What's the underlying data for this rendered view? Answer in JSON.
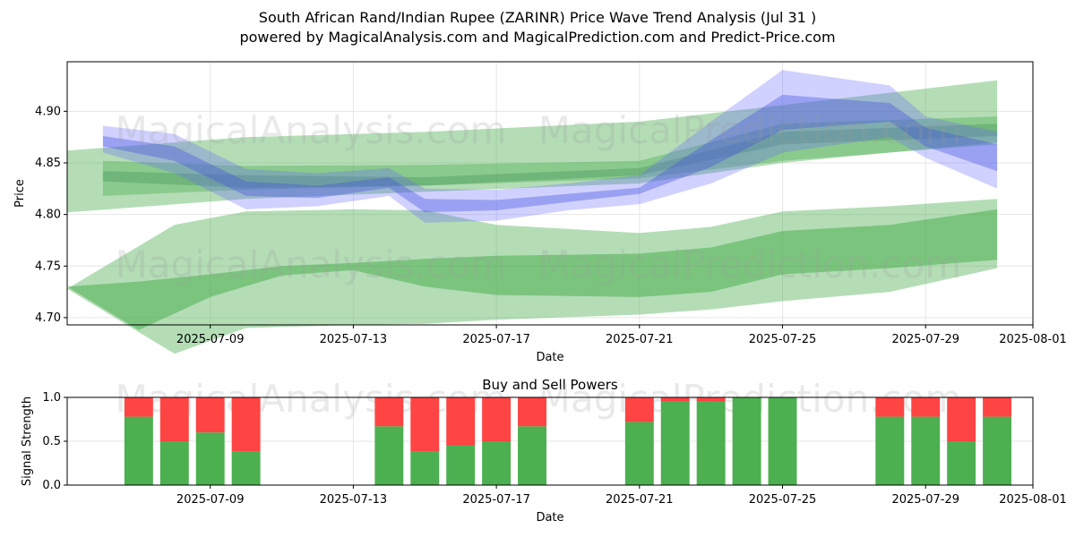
{
  "title_line1": "South African Rand/Indian Rupee (ZARINR) Price Wave Trend Analysis (Jul 31 )",
  "title_line2": "powered by MagicalAnalysis.com and MagicalPrediction.com and Predict-Price.com",
  "watermarks": [
    "MagicalAnalysis.com",
    "MagicalPrediction.com"
  ],
  "colors": {
    "green_band": "#4caf50",
    "blue_band": "#6666ff",
    "buy": "#4caf50",
    "sell": "#ff4444",
    "grid": "#e6e6e6"
  },
  "chart_data": [
    {
      "type": "area",
      "title": "",
      "xlabel": "Date",
      "ylabel": "Price",
      "x_range": [
        "2025-07-05",
        "2025-08-01"
      ],
      "ylim": [
        4.693,
        4.948
      ],
      "yticks": [
        4.7,
        4.75,
        4.8,
        4.85,
        4.9
      ],
      "ytick_labels": [
        "4.70",
        "4.75",
        "4.80",
        "4.85",
        "4.90"
      ],
      "xticks": [
        "2025-07-09",
        "2025-07-13",
        "2025-07-17",
        "2025-07-21",
        "2025-07-25",
        "2025-07-29",
        "2025-08-01"
      ],
      "grid": true,
      "series": [
        {
          "kind": "green-wide",
          "x": [
            "2025-07-05",
            "2025-07-08",
            "2025-07-10",
            "2025-07-13",
            "2025-07-15",
            "2025-07-17",
            "2025-07-21",
            "2025-07-23",
            "2025-07-25",
            "2025-07-28",
            "2025-07-31"
          ],
          "upper": [
            4.728,
            4.79,
            4.803,
            4.805,
            4.804,
            4.79,
            4.782,
            4.788,
            4.803,
            4.808,
            4.815
          ],
          "lower": [
            4.728,
            4.665,
            4.69,
            4.693,
            4.694,
            4.698,
            4.703,
            4.708,
            4.716,
            4.725,
            4.748
          ]
        },
        {
          "kind": "green-inner",
          "x": [
            "2025-07-05",
            "2025-07-07",
            "2025-07-09",
            "2025-07-11",
            "2025-07-13",
            "2025-07-15",
            "2025-07-17",
            "2025-07-21",
            "2025-07-23",
            "2025-07-25",
            "2025-07-28",
            "2025-07-31"
          ],
          "upper": [
            4.73,
            4.735,
            4.742,
            4.75,
            4.753,
            4.757,
            4.76,
            4.762,
            4.768,
            4.784,
            4.79,
            4.805
          ],
          "lower": [
            4.73,
            4.688,
            4.72,
            4.741,
            4.746,
            4.73,
            4.722,
            4.72,
            4.725,
            4.742,
            4.748,
            4.756
          ]
        },
        {
          "kind": "green-upper-outer",
          "x": [
            "2025-07-05",
            "2025-07-10",
            "2025-07-15",
            "2025-07-21",
            "2025-07-25",
            "2025-07-31"
          ],
          "upper": [
            4.862,
            4.875,
            4.88,
            4.89,
            4.906,
            4.93
          ],
          "lower": [
            4.802,
            4.815,
            4.822,
            4.83,
            4.85,
            4.87
          ]
        },
        {
          "kind": "green-upper-inner",
          "x": [
            "2025-07-06",
            "2025-07-10",
            "2025-07-15",
            "2025-07-21",
            "2025-07-25",
            "2025-07-31"
          ],
          "upper": [
            4.852,
            4.847,
            4.848,
            4.852,
            4.888,
            4.895
          ],
          "lower": [
            4.818,
            4.824,
            4.828,
            4.835,
            4.852,
            4.868
          ]
        },
        {
          "kind": "green-upper-core",
          "x": [
            "2025-07-06",
            "2025-07-10",
            "2025-07-15",
            "2025-07-21",
            "2025-07-25",
            "2025-07-31"
          ],
          "upper": [
            4.842,
            4.838,
            4.836,
            4.845,
            4.88,
            4.888
          ],
          "lower": [
            4.832,
            4.826,
            4.828,
            4.838,
            4.868,
            4.876
          ]
        },
        {
          "kind": "blue-wave",
          "x": [
            "2025-07-06",
            "2025-07-08",
            "2025-07-10",
            "2025-07-12",
            "2025-07-14",
            "2025-07-15",
            "2025-07-17",
            "2025-07-19",
            "2025-07-21",
            "2025-07-23",
            "2025-07-25",
            "2025-07-28",
            "2025-07-29",
            "2025-07-31"
          ],
          "upper": [
            4.886,
            4.878,
            4.844,
            4.84,
            4.845,
            4.825,
            4.824,
            4.83,
            4.838,
            4.89,
            4.94,
            4.925,
            4.895,
            4.88
          ],
          "lower": [
            4.86,
            4.84,
            4.805,
            4.808,
            4.818,
            4.792,
            4.794,
            4.804,
            4.81,
            4.83,
            4.86,
            4.875,
            4.855,
            4.825
          ]
        },
        {
          "kind": "blue-core",
          "x": [
            "2025-07-06",
            "2025-07-08",
            "2025-07-10",
            "2025-07-12",
            "2025-07-14",
            "2025-07-15",
            "2025-07-17",
            "2025-07-19",
            "2025-07-21",
            "2025-07-23",
            "2025-07-25",
            "2025-07-28",
            "2025-07-29",
            "2025-07-31"
          ],
          "upper": [
            4.876,
            4.866,
            4.832,
            4.828,
            4.836,
            4.815,
            4.814,
            4.82,
            4.826,
            4.872,
            4.916,
            4.908,
            4.884,
            4.868
          ],
          "lower": [
            4.866,
            4.852,
            4.818,
            4.816,
            4.826,
            4.802,
            4.804,
            4.812,
            4.82,
            4.846,
            4.882,
            4.89,
            4.866,
            4.842
          ]
        }
      ]
    },
    {
      "type": "bar",
      "title": "Buy and Sell Powers",
      "xlabel": "Date",
      "ylabel": "Signal Strength",
      "ylim": [
        0,
        1
      ],
      "yticks": [
        0.0,
        0.5,
        1.0
      ],
      "ytick_labels": [
        "0.0",
        "0.5",
        "1.0"
      ],
      "x_range": [
        "2025-07-05",
        "2025-08-01"
      ],
      "xticks": [
        "2025-07-09",
        "2025-07-13",
        "2025-07-17",
        "2025-07-21",
        "2025-07-25",
        "2025-07-29",
        "2025-08-01"
      ],
      "grid": true,
      "series": [
        {
          "name": "Buy",
          "color": "#4caf50"
        },
        {
          "name": "Sell",
          "color": "#ff4444"
        }
      ],
      "categories": [
        "2025-07-07",
        "2025-07-08",
        "2025-07-09",
        "2025-07-10",
        "2025-07-14",
        "2025-07-15",
        "2025-07-16",
        "2025-07-17",
        "2025-07-18",
        "2025-07-21",
        "2025-07-22",
        "2025-07-23",
        "2025-07-24",
        "2025-07-25",
        "2025-07-28",
        "2025-07-29",
        "2025-07-30",
        "2025-07-31"
      ],
      "buy": [
        0.78,
        0.5,
        0.6,
        0.38,
        0.67,
        0.38,
        0.45,
        0.5,
        0.67,
        0.72,
        0.95,
        0.95,
        1.0,
        1.0,
        0.78,
        0.78,
        0.5,
        0.78
      ]
    }
  ]
}
